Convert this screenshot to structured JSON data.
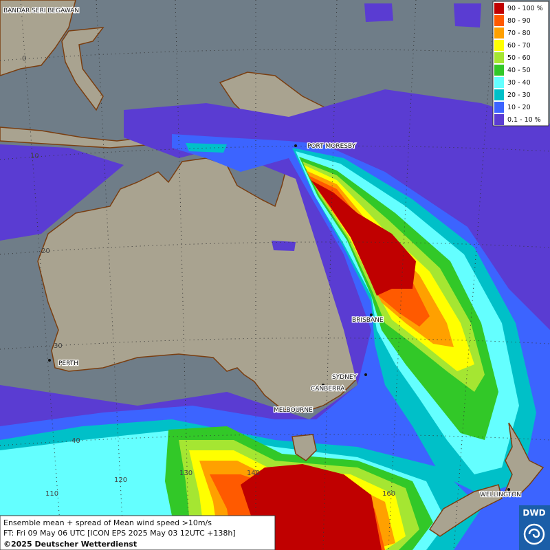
{
  "legend": {
    "items": [
      {
        "label": "90 - 100 %",
        "color": "#c00000"
      },
      {
        "label": "80 - 90",
        "color": "#ff5a00"
      },
      {
        "label": "70 - 80",
        "color": "#ffa000"
      },
      {
        "label": "60 - 70",
        "color": "#ffff00"
      },
      {
        "label": "50 - 60",
        "color": "#a5e632"
      },
      {
        "label": "40 - 50",
        "color": "#32c828"
      },
      {
        "label": "30 - 40",
        "color": "#64ffff"
      },
      {
        "label": "20 - 30",
        "color": "#00c0c8"
      },
      {
        "label": "10 - 20",
        "color": "#3c64ff"
      },
      {
        "label": "0.1 - 10 %",
        "color": "#5a3cd2"
      }
    ]
  },
  "cities": [
    "BANDAR SERI BEGAWAN",
    "PORT MORESBY",
    "BRISBANE",
    "SYDNEY",
    "CANBERRA",
    "MELBOURNE",
    "PERTH",
    "WELLINGTON"
  ],
  "grid_labels": {
    "lat": [
      "0",
      "10",
      "20",
      "30",
      "40"
    ],
    "lon": [
      "110",
      "120",
      "130",
      "140",
      "160"
    ]
  },
  "footer": {
    "line1": "Ensemble mean + spread of Mean wind speed >10m/s",
    "line2": "FT: Fri 09 May 06 UTC [ICON EPS 2025 May 03 12UTC +138h]",
    "line3": "©2025 Deutscher Wetterdienst"
  },
  "logo": "DWD"
}
